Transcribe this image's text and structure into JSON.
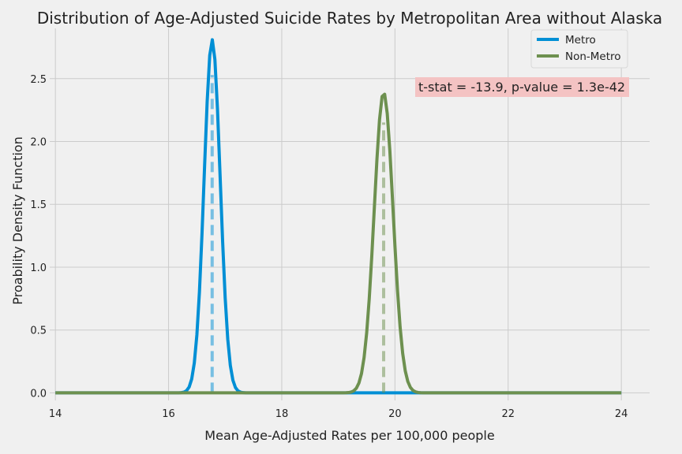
{
  "chart_data": {
    "type": "line",
    "title": "Distribution of Age-Adjusted Suicide Rates by Metropolitan Area without Alaska",
    "xlabel": "Mean Age-Adjusted Rates per 100,000 people",
    "ylabel": "Proability Density Function",
    "xlim": [
      13.9,
      24.5
    ],
    "ylim": [
      -0.06,
      2.9
    ],
    "x_ticks": [
      "14",
      "16",
      "18",
      "20",
      "22",
      "24"
    ],
    "y_ticks": [
      "0.0",
      "0.5",
      "1.0",
      "1.5",
      "2.0",
      "2.5"
    ],
    "grid": true,
    "legend_position": "top-right",
    "annotation": "t-stat = -13.9, p-value = 1.3e-42",
    "annotation_color": "#f4c3c3",
    "domain": [
      14,
      24
    ],
    "series": [
      {
        "name": "Metro",
        "color": "#008fd5",
        "mean": 16.77,
        "sd": 0.142,
        "peak": 2.81
      },
      {
        "name": "Non-Metro",
        "color": "#6d904f",
        "mean": 19.8,
        "sd": 0.167,
        "peak": 2.39
      }
    ]
  }
}
